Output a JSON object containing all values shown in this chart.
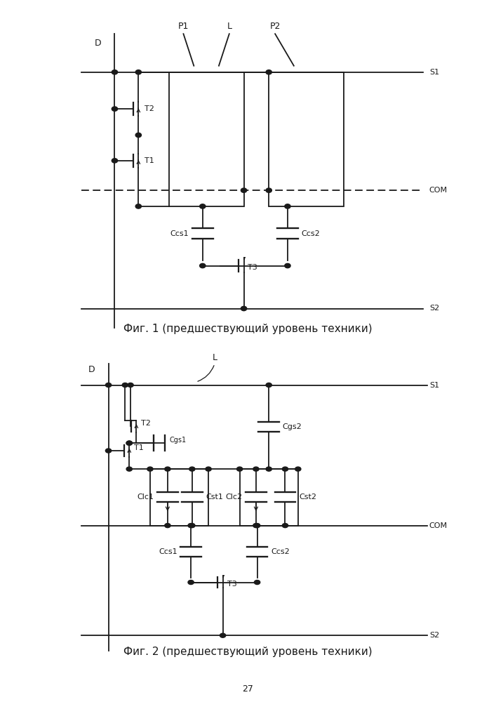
{
  "fig1_caption": "Фиг. 1 (предшествующий уровень техники)",
  "fig2_caption": "Фиг. 2 (предшествующий уровень техники)",
  "page_number": "27",
  "bg_color": "#ffffff",
  "line_color": "#1a1a1a",
  "line_width": 1.3,
  "font_size": 9,
  "caption_font_size": 11,
  "dot_r": 0.007
}
